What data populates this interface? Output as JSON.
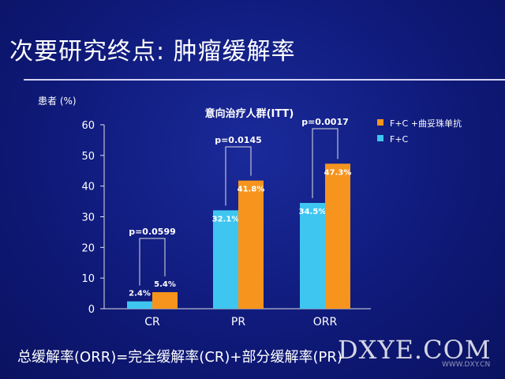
{
  "slide": {
    "title": "次要研究终点:  肿瘤缓解率",
    "footer_note": "总缓解率(ORR)=完全缓解率(CR)+部分缓解率(PR)",
    "watermark": "DXYE.COM",
    "watermark_url": "WWW.DXY.CN"
  },
  "colors": {
    "orange": "#f7941d",
    "cyan": "#3ec6f0",
    "text": "#ffffff",
    "axis": "#e0e0e0"
  },
  "chart_data": {
    "type": "bar",
    "title": "意向治疗人群(ITT)",
    "ylabel": "患者 (%)",
    "xlabel": "",
    "ylim": [
      0,
      60
    ],
    "yticks": [
      0,
      10,
      20,
      30,
      40,
      50,
      60
    ],
    "categories": [
      "CR",
      "PR",
      "ORR"
    ],
    "series": [
      {
        "name": "F+C",
        "color": "#3ec6f0",
        "values": [
          2.4,
          32.1,
          34.5
        ],
        "labels": [
          "2.4%",
          "32.1%",
          "34.5%"
        ]
      },
      {
        "name": "F+C +曲妥珠单抗",
        "color": "#f7941d",
        "values": [
          5.4,
          41.8,
          47.3
        ],
        "labels": [
          "5.4%",
          "41.8%",
          "47.3%"
        ]
      }
    ],
    "legend_order": [
      1,
      0
    ],
    "legend_position": "top-right",
    "pvalues": [
      "p=0.0599",
      "p=0.0145",
      "p=0.0017"
    ],
    "grid": false
  }
}
